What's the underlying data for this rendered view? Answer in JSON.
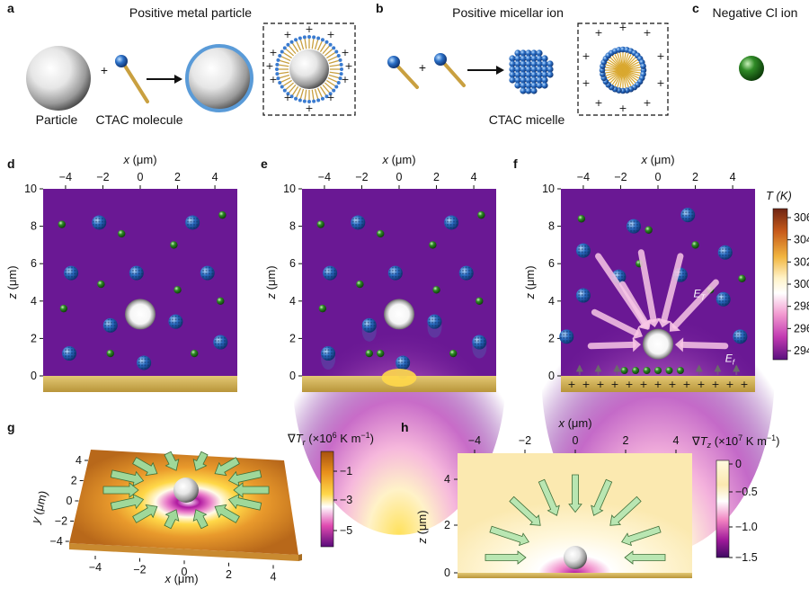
{
  "panels": {
    "a": {
      "letter": "a",
      "title": "Positive metal particle",
      "label_particle": "Particle",
      "label_molecule": "CTAC molecule",
      "plus": "+"
    },
    "b": {
      "letter": "b",
      "title": "Positive micellar ion",
      "label_micelle": "CTAC micelle"
    },
    "c": {
      "letter": "c",
      "title": "Negative Cl ion"
    },
    "d": {
      "letter": "d"
    },
    "e": {
      "letter": "e"
    },
    "f": {
      "letter": "f",
      "label_et_bulk": "E",
      "label_et_sub": "T",
      "label_ef_bulk": "E",
      "label_ef_sub": "f"
    },
    "g": {
      "letter": "g",
      "colorbar_title": "∇T_r (×10^6 K m⁻¹)",
      "colorbar_ticks": [
        "-1",
        "-3",
        "-5"
      ],
      "y_label": "y (μm)",
      "x_label": "x (μm)",
      "y_ticks": [
        "4",
        "2",
        "0",
        "-2",
        "-4"
      ],
      "x_ticks": [
        "-4",
        "-2",
        "0",
        "2",
        "4"
      ]
    },
    "h": {
      "letter": "h",
      "x_label": "x (μm)",
      "z_label": "z (μm)",
      "x_ticks": [
        "-4",
        "-2",
        "0",
        "2",
        "4"
      ],
      "z_ticks": [
        "4",
        "2",
        "0"
      ],
      "colorbar_title": "∇T_z (×10^7 K m⁻¹)",
      "colorbar_ticks": [
        "0",
        "-0.5",
        "-1.0",
        "-1.5"
      ]
    }
  },
  "shared_axes": {
    "x_label": "x (μm)",
    "z_label": "z (μm)",
    "x_ticks": [
      "-4",
      "-2",
      "0",
      "2",
      "4"
    ],
    "z_ticks": [
      "10",
      "8",
      "6",
      "4",
      "2",
      "0"
    ]
  },
  "temperature_colorbar": {
    "title": "T (K)",
    "ticks": [
      "306",
      "304",
      "302",
      "300",
      "298",
      "296",
      "294"
    ]
  },
  "colors": {
    "plot_background": "#6a1894",
    "substrate": "#c9a850",
    "micelle": "#2b6fc6",
    "cl_ion": "#2f8a26",
    "arrow": "#8fce8a"
  },
  "scatter": {
    "green_ions": [
      [
        -4.2,
        8.1
      ],
      [
        -1.0,
        7.6
      ],
      [
        1.8,
        7.0
      ],
      [
        4.4,
        8.6
      ],
      [
        -2.1,
        4.9
      ],
      [
        2.0,
        4.6
      ],
      [
        -4.1,
        3.6
      ],
      [
        4.3,
        4.0
      ],
      [
        -1.6,
        1.2
      ],
      [
        2.9,
        1.2
      ]
    ],
    "micelles": [
      [
        -2.2,
        8.2
      ],
      [
        2.8,
        8.2
      ],
      [
        -3.7,
        5.5
      ],
      [
        -0.2,
        5.5
      ],
      [
        3.6,
        5.5
      ],
      [
        1.9,
        2.9
      ],
      [
        -1.6,
        2.7
      ],
      [
        -3.8,
        1.2
      ],
      [
        4.3,
        1.8
      ],
      [
        0.2,
        0.7
      ]
    ],
    "f_green_ions": [
      [
        -4.1,
        8.4
      ],
      [
        -0.5,
        7.8
      ],
      [
        2.0,
        7.0
      ],
      [
        4.5,
        5.2
      ],
      [
        -1.0,
        6.0
      ],
      [
        2.8,
        4.6
      ]
    ],
    "f_micelles": [
      [
        -1.3,
        8.0
      ],
      [
        1.6,
        8.6
      ],
      [
        -4.0,
        6.7
      ],
      [
        3.6,
        6.6
      ],
      [
        -4.0,
        4.3
      ],
      [
        1.2,
        5.4
      ],
      [
        -2.1,
        5.3
      ],
      [
        3.5,
        4.1
      ],
      [
        -4.9,
        2.1
      ],
      [
        4.4,
        2.1
      ]
    ],
    "f_bottom_ions": [
      -1.8,
      -1.2,
      -0.6,
      0.0,
      0.6,
      1.2
    ]
  },
  "field_arrows_f": [
    [
      -4.2,
      0
    ],
    [
      -3.2,
      0
    ],
    [
      -2.2,
      0
    ],
    [
      2.2,
      0
    ],
    [
      3.2,
      0
    ],
    [
      4.2,
      0
    ]
  ]
}
